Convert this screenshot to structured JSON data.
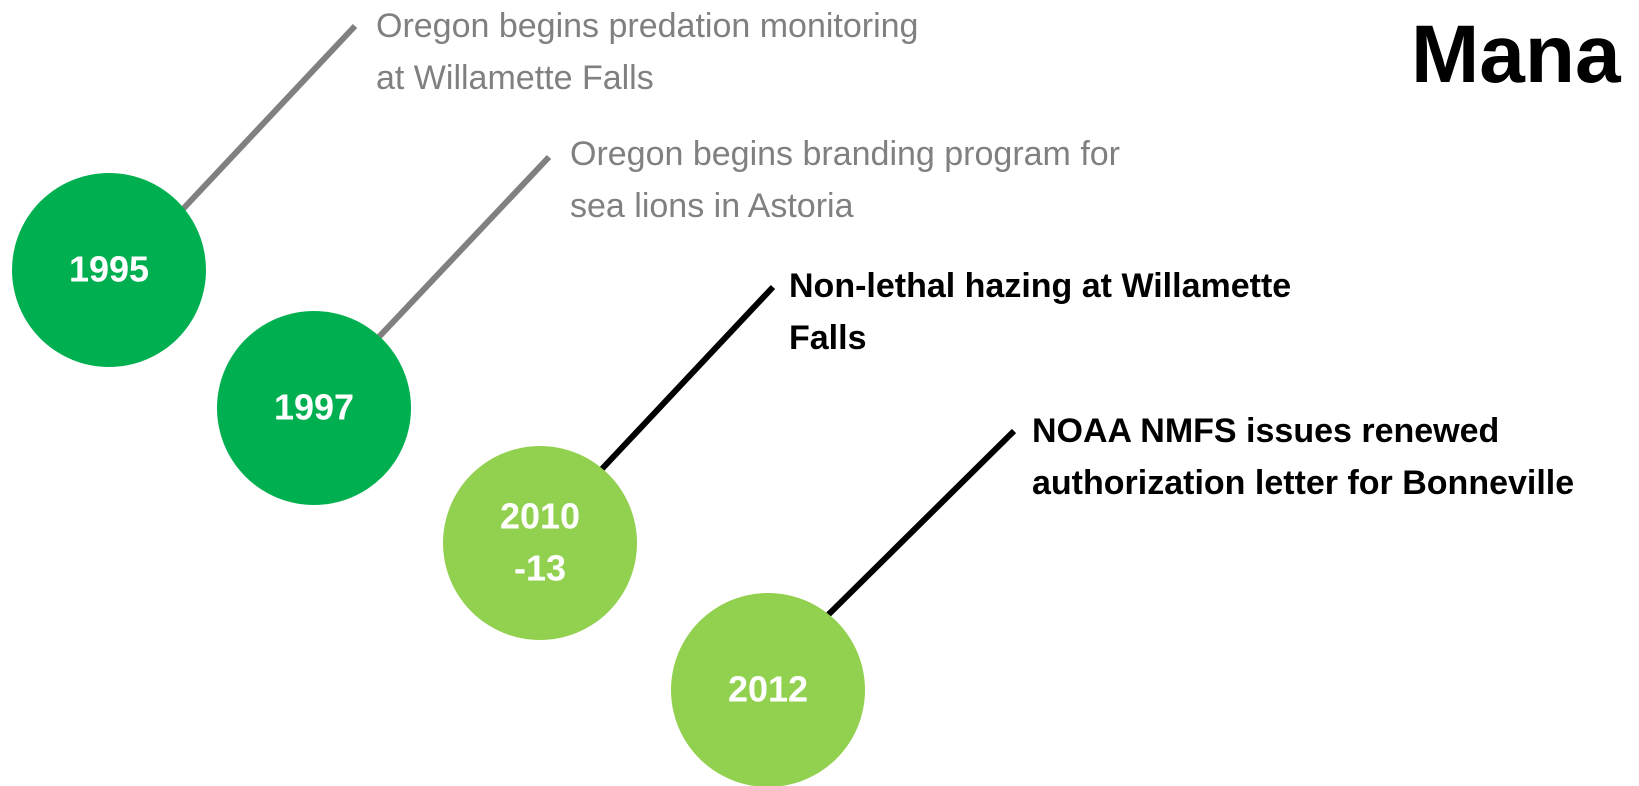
{
  "title": "Mana",
  "events": [
    {
      "year": [
        "1995"
      ],
      "text": "Oregon begins predation monitoring at Willamette Falls",
      "style": "past",
      "color": "#00b050"
    },
    {
      "year": [
        "1997"
      ],
      "text": "Oregon begins branding program for sea lions in Astoria",
      "style": "past",
      "color": "#00b050"
    },
    {
      "year": [
        "2010",
        "-13"
      ],
      "text": "Non-lethal hazing at Willamette Falls",
      "style": "current",
      "color": "#92d050"
    },
    {
      "year": [
        "2012"
      ],
      "text": "NOAA NMFS issues renewed authorization letter for Bonneville",
      "style": "current",
      "color": "#92d050"
    }
  ]
}
